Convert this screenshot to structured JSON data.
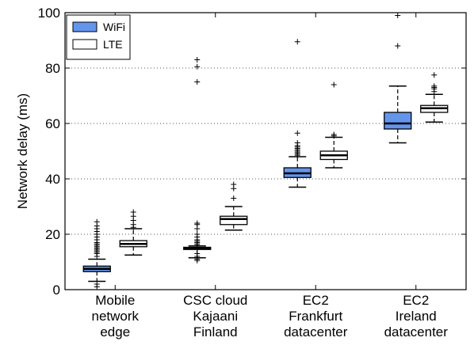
{
  "chart_data": {
    "type": "boxplot",
    "ylabel": "Network delay (ms)",
    "ylim": [
      0,
      100
    ],
    "yticks": [
      0,
      20,
      40,
      60,
      80,
      100
    ],
    "grid": "horizontal-dotted",
    "legend_position": "top-left",
    "categories": [
      [
        "Mobile",
        "network",
        "edge"
      ],
      [
        "CSC cloud",
        "Kajaani",
        "Finland"
      ],
      [
        "EC2",
        "Frankfurt",
        "datacenter"
      ],
      [
        "EC2",
        "Ireland",
        "datacenter"
      ]
    ],
    "series": [
      {
        "name": "WiFi",
        "color": "#6495ED",
        "boxes": [
          {
            "whislo": 3,
            "q1": 6.5,
            "med": 7.5,
            "q3": 8.5,
            "whishi": 11,
            "fliers": [
              1,
              2,
              12,
              13,
              13.5,
              14,
              14.5,
              15,
              15.5,
              16,
              16.5,
              17,
              18,
              19,
              20,
              21,
              22,
              23,
              24.5
            ]
          },
          {
            "whislo": 11.5,
            "q1": 14.5,
            "med": 15,
            "q3": 15.3,
            "whishi": 15.8,
            "fliers": [
              10.5,
              11,
              12,
              13,
              16,
              16.5,
              17,
              17.5,
              18,
              19,
              20,
              22,
              23.5,
              24,
              75,
              80.5,
              83
            ]
          },
          {
            "whislo": 37,
            "q1": 40.5,
            "med": 42,
            "q3": 44,
            "whishi": 48,
            "fliers": [
              48.5,
              49,
              49.5,
              50,
              50.5,
              51,
              51.5,
              52,
              53,
              56.5,
              89.5
            ]
          },
          {
            "whislo": 53,
            "q1": 58,
            "med": 60,
            "q3": 64,
            "whishi": 73.5,
            "fliers": [
              88,
              99
            ]
          }
        ]
      },
      {
        "name": "LTE",
        "color": "#ffffff",
        "boxes": [
          {
            "whislo": 12.5,
            "q1": 15.5,
            "med": 16.5,
            "q3": 17.7,
            "whishi": 22,
            "fliers": [
              22.5,
              23.5,
              25,
              26.5,
              28
            ]
          },
          {
            "whislo": 21.5,
            "q1": 23.5,
            "med": 25.5,
            "q3": 26.5,
            "whishi": 30,
            "fliers": [
              33,
              36.5,
              38
            ]
          },
          {
            "whislo": 44,
            "q1": 47,
            "med": 48.5,
            "q3": 50,
            "whishi": 55,
            "fliers": [
              55.5,
              56,
              74
            ]
          },
          {
            "whislo": 60.5,
            "q1": 64,
            "med": 65.5,
            "q3": 66.5,
            "whishi": 70.5,
            "fliers": [
              71.5,
              72.5,
              73,
              73.5,
              77.5
            ]
          }
        ]
      }
    ]
  }
}
